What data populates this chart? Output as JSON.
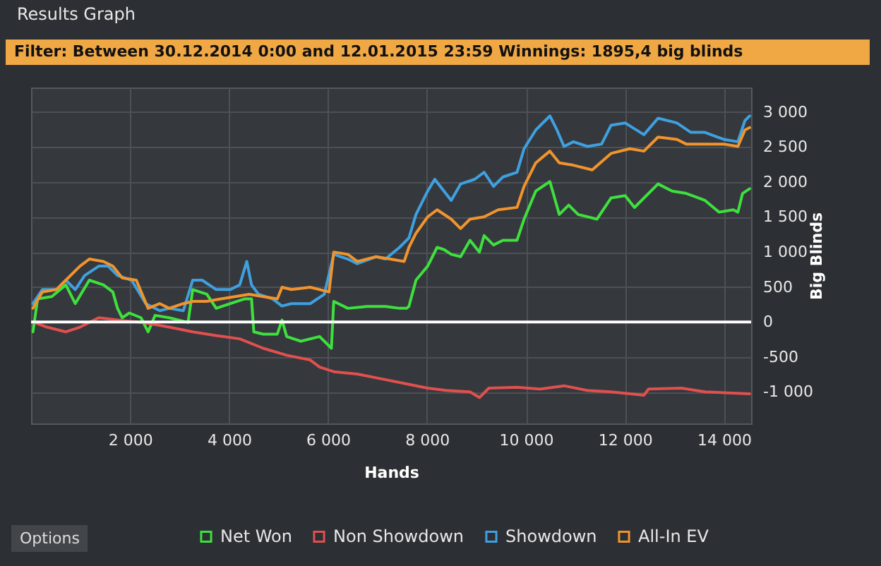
{
  "chart_data": {
    "type": "line",
    "title": "Results Graph",
    "subtitle": "Filter: Between 30.12.2014 0:00 and 12.01.2015 23:59 Winnings: 1895,4 big blinds",
    "xlabel": "Hands",
    "ylabel": "Big Blinds",
    "annotations": [
      "Options"
    ],
    "xlim": [
      0,
      14550
    ],
    "ylim": [
      -1450,
      3350
    ],
    "xticks": [
      {
        "value": 2000,
        "label": "2 000"
      },
      {
        "value": 4000,
        "label": "4 000"
      },
      {
        "value": 6000,
        "label": "6 000"
      },
      {
        "value": 8000,
        "label": "8 000"
      },
      {
        "value": 10000,
        "label": "10 000"
      },
      {
        "value": 12000,
        "label": "12 000"
      },
      {
        "value": 14000,
        "label": "14 000"
      }
    ],
    "yticks": [
      {
        "value": -1000,
        "label": "-1 000"
      },
      -500,
      0,
      500,
      {
        "value": 1000,
        "label": "1 000"
      },
      {
        "value": 1500,
        "label": "1 500"
      },
      {
        "value": 2000,
        "label": "2 000"
      },
      {
        "value": 2500,
        "label": "2 500"
      },
      {
        "value": 3000,
        "label": "3 000"
      }
    ],
    "grid": true,
    "legend": "bottom",
    "marker": "none",
    "line_style": "solid",
    "ref_lines": [
      {
        "axis": "y",
        "value": 0,
        "color": "#ffffff"
      }
    ],
    "series": [
      {
        "name": "Net Won",
        "color": "#3ee03e",
        "x": [
          38,
          133,
          418,
          703,
          893,
          1177,
          1462,
          1652,
          1747,
          1842,
          1985,
          2222,
          2365,
          2507,
          2792,
          3172,
          3267,
          3552,
          3742,
          4027,
          4312,
          4455,
          4501,
          4691,
          4976,
          5071,
          5166,
          5451,
          5831,
          6069,
          6116,
          6401,
          6782,
          7161,
          7446,
          7588,
          7635,
          7778,
          8015,
          8205,
          8348,
          8490,
          8680,
          8870,
          9060,
          9155,
          9345,
          9535,
          9820,
          9962,
          10199,
          10484,
          10674,
          10864,
          11054,
          11434,
          11719,
          12004,
          12194,
          12669,
          12954,
          13239,
          13618,
          13903,
          14188,
          14283,
          14378,
          14521
        ],
        "values": [
          -141,
          329,
          362,
          530,
          262,
          597,
          530,
          429,
          195,
          60,
          128,
          60,
          -141,
          94,
          60,
          -7,
          463,
          396,
          195,
          262,
          329,
          329,
          -141,
          -174,
          -174,
          27,
          -208,
          -275,
          -208,
          -376,
          295,
          195,
          221,
          221,
          195,
          195,
          221,
          597,
          798,
          1066,
          1033,
          966,
          932,
          1167,
          999,
          1234,
          1100,
          1167,
          1167,
          1469,
          1871,
          2006,
          1536,
          1670,
          1536,
          1469,
          1771,
          1804,
          1636,
          1972,
          1871,
          1837,
          1737,
          1569,
          1603,
          1569,
          1837,
          1905
        ]
      },
      {
        "name": "Non Showdown",
        "color": "#e0504f",
        "x": [
          38,
          323,
          703,
          988,
          1368,
          1842,
          2317,
          2792,
          3267,
          3742,
          4217,
          4691,
          5166,
          5641,
          5831,
          6116,
          6591,
          7066,
          7540,
          8015,
          8395,
          8870,
          9060,
          9250,
          9820,
          10294,
          10769,
          11244,
          11719,
          12384,
          12479,
          13144,
          13618,
          14093,
          14521
        ],
        "values": [
          0,
          -74,
          -141,
          -74,
          60,
          20,
          -13,
          -74,
          -141,
          -195,
          -241,
          -376,
          -476,
          -543,
          -644,
          -711,
          -744,
          -811,
          -878,
          -946,
          -979,
          -999,
          -1080,
          -946,
          -932,
          -959,
          -912,
          -979,
          -999,
          -1046,
          -959,
          -946,
          -999,
          -1013,
          -1026
        ]
      },
      {
        "name": "Showdown",
        "color": "#3fa0e0",
        "x": [
          38,
          228,
          513,
          703,
          893,
          1083,
          1368,
          1557,
          1747,
          2032,
          2317,
          2602,
          2792,
          3077,
          3267,
          3457,
          3742,
          4027,
          4217,
          4359,
          4455,
          4596,
          4881,
          5071,
          5261,
          5641,
          5926,
          6116,
          6401,
          6591,
          6971,
          7161,
          7446,
          7635,
          7778,
          8015,
          8158,
          8490,
          8680,
          8965,
          9155,
          9345,
          9535,
          9820,
          9962,
          10199,
          10484,
          10627,
          10769,
          10959,
          11244,
          11529,
          11719,
          12004,
          12384,
          12669,
          13048,
          13333,
          13618,
          13998,
          14283,
          14425,
          14521
        ],
        "values": [
          262,
          463,
          463,
          597,
          463,
          664,
          798,
          798,
          664,
          597,
          262,
          161,
          195,
          161,
          597,
          597,
          463,
          463,
          530,
          865,
          530,
          396,
          329,
          228,
          262,
          262,
          396,
          966,
          899,
          832,
          932,
          899,
          1066,
          1200,
          1536,
          1871,
          2039,
          1737,
          1972,
          2039,
          2139,
          1938,
          2072,
          2139,
          2475,
          2743,
          2944,
          2743,
          2508,
          2575,
          2508,
          2542,
          2810,
          2844,
          2676,
          2911,
          2844,
          2709,
          2709,
          2609,
          2575,
          2877,
          2944
        ]
      },
      {
        "name": "All-In EV",
        "color": "#f0942e",
        "x": [
          38,
          228,
          513,
          703,
          988,
          1177,
          1462,
          1652,
          1842,
          2127,
          2365,
          2602,
          2792,
          3077,
          3267,
          3552,
          3837,
          4122,
          4407,
          4691,
          4976,
          5071,
          5261,
          5641,
          6021,
          6116,
          6401,
          6591,
          6971,
          7256,
          7540,
          7635,
          7778,
          8015,
          8205,
          8490,
          8680,
          8870,
          9155,
          9440,
          9820,
          9962,
          10199,
          10484,
          10674,
          10959,
          11339,
          11719,
          12099,
          12384,
          12669,
          13048,
          13239,
          13618,
          13998,
          14283,
          14425,
          14521
        ],
        "values": [
          195,
          429,
          463,
          597,
          798,
          899,
          865,
          798,
          630,
          597,
          195,
          262,
          195,
          262,
          295,
          295,
          329,
          362,
          396,
          362,
          329,
          496,
          463,
          496,
          429,
          999,
          966,
          865,
          932,
          899,
          865,
          1066,
          1268,
          1502,
          1603,
          1469,
          1335,
          1469,
          1502,
          1603,
          1637,
          1938,
          2274,
          2441,
          2274,
          2240,
          2173,
          2408,
          2475,
          2441,
          2642,
          2609,
          2542,
          2542,
          2542,
          2508,
          2743,
          2777
        ]
      }
    ]
  }
}
